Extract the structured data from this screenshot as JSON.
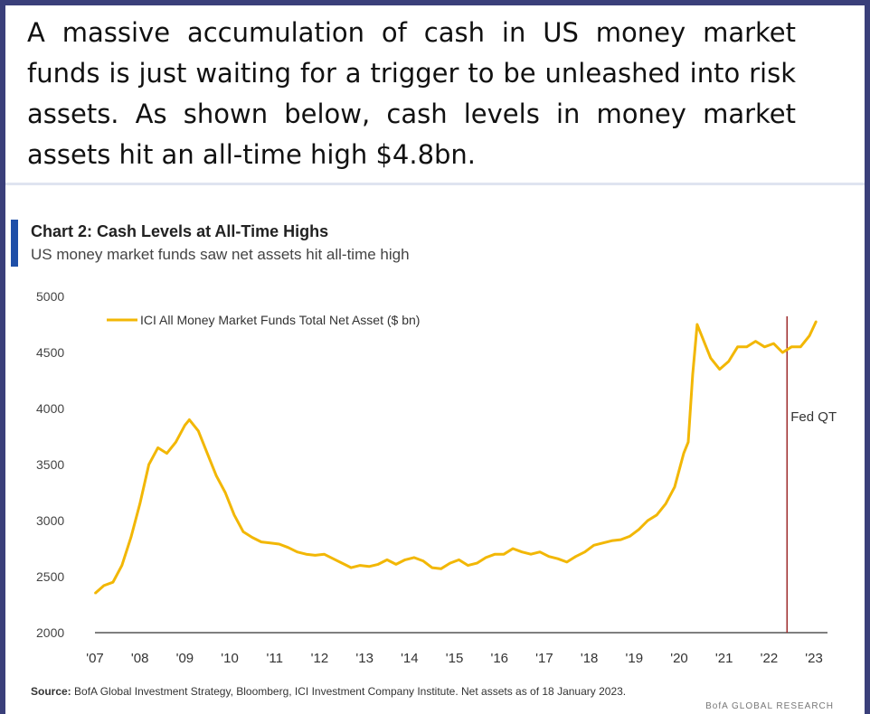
{
  "headline": "A massive accumulation of cash in US money market funds is just waiting for a trigger to be unleashed into risk assets. As shown below, cash levels in money market assets hit an all-time high $4.8bn.",
  "chart_label": "Chart 2: Cash Levels at All-Time Highs",
  "chart_subtitle": "US money market funds saw net assets hit all-time high",
  "source_label": "Source:",
  "source_text": "BofA Global Investment Strategy, Bloomberg, ICI Investment Company Institute. Net assets as of 18 January 2023.",
  "brand": "BofA GLOBAL RESEARCH",
  "colors": {
    "line": "#f2b705",
    "vline": "#9e2a2b",
    "axis": "#555555",
    "accent": "#1f4fa8"
  },
  "chart_data": {
    "type": "line",
    "title": "Chart 2: Cash Levels at All-Time Highs",
    "subtitle": "US money market funds saw net assets hit all-time high",
    "ylim": [
      2000,
      5000
    ],
    "xlim": [
      2007,
      2023.3
    ],
    "yticks": [
      2000,
      2500,
      3000,
      3500,
      4000,
      4500,
      5000
    ],
    "xticks": [
      {
        "value": 2007,
        "label": "'07"
      },
      {
        "value": 2008,
        "label": "'08"
      },
      {
        "value": 2009,
        "label": "'09"
      },
      {
        "value": 2010,
        "label": "'10"
      },
      {
        "value": 2011,
        "label": "'11"
      },
      {
        "value": 2012,
        "label": "'12"
      },
      {
        "value": 2013,
        "label": "'13"
      },
      {
        "value": 2014,
        "label": "'14"
      },
      {
        "value": 2015,
        "label": "'15"
      },
      {
        "value": 2016,
        "label": "'16"
      },
      {
        "value": 2017,
        "label": "'17"
      },
      {
        "value": 2018,
        "label": "'18"
      },
      {
        "value": 2019,
        "label": "'19"
      },
      {
        "value": 2020,
        "label": "'20"
      },
      {
        "value": 2021,
        "label": "'21"
      },
      {
        "value": 2022,
        "label": "'22"
      },
      {
        "value": 2023,
        "label": "'23"
      }
    ],
    "grid": false,
    "legend_position": "top-left",
    "series": [
      {
        "name": "ICI All Money Market Funds Total Net Asset ($ bn)",
        "points": [
          [
            2007.0,
            2350
          ],
          [
            2007.2,
            2420
          ],
          [
            2007.4,
            2450
          ],
          [
            2007.6,
            2600
          ],
          [
            2007.8,
            2850
          ],
          [
            2008.0,
            3150
          ],
          [
            2008.2,
            3500
          ],
          [
            2008.4,
            3650
          ],
          [
            2008.6,
            3600
          ],
          [
            2008.8,
            3700
          ],
          [
            2009.0,
            3850
          ],
          [
            2009.1,
            3900
          ],
          [
            2009.3,
            3800
          ],
          [
            2009.5,
            3600
          ],
          [
            2009.7,
            3400
          ],
          [
            2009.9,
            3250
          ],
          [
            2010.1,
            3050
          ],
          [
            2010.3,
            2900
          ],
          [
            2010.5,
            2850
          ],
          [
            2010.7,
            2810
          ],
          [
            2010.9,
            2800
          ],
          [
            2011.1,
            2790
          ],
          [
            2011.3,
            2760
          ],
          [
            2011.5,
            2720
          ],
          [
            2011.7,
            2700
          ],
          [
            2011.9,
            2690
          ],
          [
            2012.1,
            2700
          ],
          [
            2012.3,
            2660
          ],
          [
            2012.5,
            2620
          ],
          [
            2012.7,
            2580
          ],
          [
            2012.9,
            2600
          ],
          [
            2013.1,
            2590
          ],
          [
            2013.3,
            2610
          ],
          [
            2013.5,
            2650
          ],
          [
            2013.7,
            2610
          ],
          [
            2013.9,
            2650
          ],
          [
            2014.1,
            2670
          ],
          [
            2014.3,
            2640
          ],
          [
            2014.5,
            2580
          ],
          [
            2014.7,
            2570
          ],
          [
            2014.9,
            2620
          ],
          [
            2015.1,
            2650
          ],
          [
            2015.3,
            2600
          ],
          [
            2015.5,
            2620
          ],
          [
            2015.7,
            2670
          ],
          [
            2015.9,
            2700
          ],
          [
            2016.1,
            2700
          ],
          [
            2016.3,
            2750
          ],
          [
            2016.5,
            2720
          ],
          [
            2016.7,
            2700
          ],
          [
            2016.9,
            2720
          ],
          [
            2017.1,
            2680
          ],
          [
            2017.3,
            2660
          ],
          [
            2017.5,
            2630
          ],
          [
            2017.7,
            2680
          ],
          [
            2017.9,
            2720
          ],
          [
            2018.1,
            2780
          ],
          [
            2018.3,
            2800
          ],
          [
            2018.5,
            2820
          ],
          [
            2018.7,
            2830
          ],
          [
            2018.9,
            2860
          ],
          [
            2019.1,
            2920
          ],
          [
            2019.3,
            3000
          ],
          [
            2019.5,
            3050
          ],
          [
            2019.7,
            3150
          ],
          [
            2019.9,
            3300
          ],
          [
            2020.1,
            3600
          ],
          [
            2020.2,
            3700
          ],
          [
            2020.3,
            4300
          ],
          [
            2020.4,
            4750
          ],
          [
            2020.55,
            4600
          ],
          [
            2020.7,
            4450
          ],
          [
            2020.9,
            4350
          ],
          [
            2021.1,
            4420
          ],
          [
            2021.3,
            4550
          ],
          [
            2021.5,
            4550
          ],
          [
            2021.7,
            4600
          ],
          [
            2021.9,
            4550
          ],
          [
            2022.1,
            4580
          ],
          [
            2022.3,
            4500
          ],
          [
            2022.5,
            4550
          ],
          [
            2022.7,
            4550
          ],
          [
            2022.9,
            4650
          ],
          [
            2023.05,
            4780
          ]
        ]
      }
    ],
    "annotations": [
      {
        "type": "vline",
        "x": 2022.4,
        "label": "Fed QT"
      }
    ]
  }
}
